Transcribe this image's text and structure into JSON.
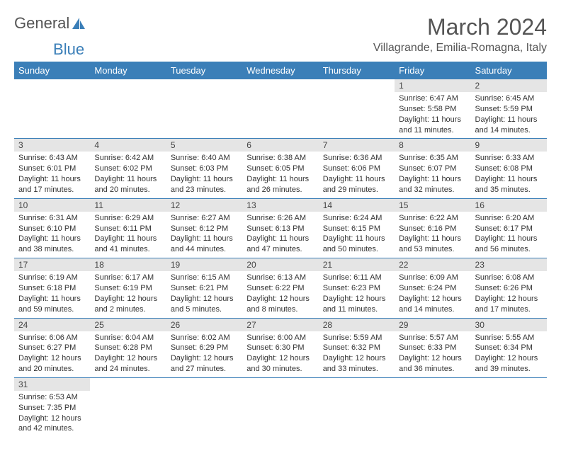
{
  "logo": {
    "text1": "General",
    "text2": "Blue"
  },
  "header": {
    "title": "March 2024",
    "location": "Villagrande, Emilia-Romagna, Italy"
  },
  "dayNames": [
    "Sunday",
    "Monday",
    "Tuesday",
    "Wednesday",
    "Thursday",
    "Friday",
    "Saturday"
  ],
  "colors": {
    "headerBg": "#3b7fb8",
    "headerText": "#ffffff",
    "dayNumBg": "#e5e5e5",
    "border": "#3b7fb8"
  },
  "weeks": [
    [
      {
        "num": "",
        "sunrise": "",
        "sunset": "",
        "daylight": ""
      },
      {
        "num": "",
        "sunrise": "",
        "sunset": "",
        "daylight": ""
      },
      {
        "num": "",
        "sunrise": "",
        "sunset": "",
        "daylight": ""
      },
      {
        "num": "",
        "sunrise": "",
        "sunset": "",
        "daylight": ""
      },
      {
        "num": "",
        "sunrise": "",
        "sunset": "",
        "daylight": ""
      },
      {
        "num": "1",
        "sunrise": "Sunrise: 6:47 AM",
        "sunset": "Sunset: 5:58 PM",
        "daylight": "Daylight: 11 hours and 11 minutes."
      },
      {
        "num": "2",
        "sunrise": "Sunrise: 6:45 AM",
        "sunset": "Sunset: 5:59 PM",
        "daylight": "Daylight: 11 hours and 14 minutes."
      }
    ],
    [
      {
        "num": "3",
        "sunrise": "Sunrise: 6:43 AM",
        "sunset": "Sunset: 6:01 PM",
        "daylight": "Daylight: 11 hours and 17 minutes."
      },
      {
        "num": "4",
        "sunrise": "Sunrise: 6:42 AM",
        "sunset": "Sunset: 6:02 PM",
        "daylight": "Daylight: 11 hours and 20 minutes."
      },
      {
        "num": "5",
        "sunrise": "Sunrise: 6:40 AM",
        "sunset": "Sunset: 6:03 PM",
        "daylight": "Daylight: 11 hours and 23 minutes."
      },
      {
        "num": "6",
        "sunrise": "Sunrise: 6:38 AM",
        "sunset": "Sunset: 6:05 PM",
        "daylight": "Daylight: 11 hours and 26 minutes."
      },
      {
        "num": "7",
        "sunrise": "Sunrise: 6:36 AM",
        "sunset": "Sunset: 6:06 PM",
        "daylight": "Daylight: 11 hours and 29 minutes."
      },
      {
        "num": "8",
        "sunrise": "Sunrise: 6:35 AM",
        "sunset": "Sunset: 6:07 PM",
        "daylight": "Daylight: 11 hours and 32 minutes."
      },
      {
        "num": "9",
        "sunrise": "Sunrise: 6:33 AM",
        "sunset": "Sunset: 6:08 PM",
        "daylight": "Daylight: 11 hours and 35 minutes."
      }
    ],
    [
      {
        "num": "10",
        "sunrise": "Sunrise: 6:31 AM",
        "sunset": "Sunset: 6:10 PM",
        "daylight": "Daylight: 11 hours and 38 minutes."
      },
      {
        "num": "11",
        "sunrise": "Sunrise: 6:29 AM",
        "sunset": "Sunset: 6:11 PM",
        "daylight": "Daylight: 11 hours and 41 minutes."
      },
      {
        "num": "12",
        "sunrise": "Sunrise: 6:27 AM",
        "sunset": "Sunset: 6:12 PM",
        "daylight": "Daylight: 11 hours and 44 minutes."
      },
      {
        "num": "13",
        "sunrise": "Sunrise: 6:26 AM",
        "sunset": "Sunset: 6:13 PM",
        "daylight": "Daylight: 11 hours and 47 minutes."
      },
      {
        "num": "14",
        "sunrise": "Sunrise: 6:24 AM",
        "sunset": "Sunset: 6:15 PM",
        "daylight": "Daylight: 11 hours and 50 minutes."
      },
      {
        "num": "15",
        "sunrise": "Sunrise: 6:22 AM",
        "sunset": "Sunset: 6:16 PM",
        "daylight": "Daylight: 11 hours and 53 minutes."
      },
      {
        "num": "16",
        "sunrise": "Sunrise: 6:20 AM",
        "sunset": "Sunset: 6:17 PM",
        "daylight": "Daylight: 11 hours and 56 minutes."
      }
    ],
    [
      {
        "num": "17",
        "sunrise": "Sunrise: 6:19 AM",
        "sunset": "Sunset: 6:18 PM",
        "daylight": "Daylight: 11 hours and 59 minutes."
      },
      {
        "num": "18",
        "sunrise": "Sunrise: 6:17 AM",
        "sunset": "Sunset: 6:19 PM",
        "daylight": "Daylight: 12 hours and 2 minutes."
      },
      {
        "num": "19",
        "sunrise": "Sunrise: 6:15 AM",
        "sunset": "Sunset: 6:21 PM",
        "daylight": "Daylight: 12 hours and 5 minutes."
      },
      {
        "num": "20",
        "sunrise": "Sunrise: 6:13 AM",
        "sunset": "Sunset: 6:22 PM",
        "daylight": "Daylight: 12 hours and 8 minutes."
      },
      {
        "num": "21",
        "sunrise": "Sunrise: 6:11 AM",
        "sunset": "Sunset: 6:23 PM",
        "daylight": "Daylight: 12 hours and 11 minutes."
      },
      {
        "num": "22",
        "sunrise": "Sunrise: 6:09 AM",
        "sunset": "Sunset: 6:24 PM",
        "daylight": "Daylight: 12 hours and 14 minutes."
      },
      {
        "num": "23",
        "sunrise": "Sunrise: 6:08 AM",
        "sunset": "Sunset: 6:26 PM",
        "daylight": "Daylight: 12 hours and 17 minutes."
      }
    ],
    [
      {
        "num": "24",
        "sunrise": "Sunrise: 6:06 AM",
        "sunset": "Sunset: 6:27 PM",
        "daylight": "Daylight: 12 hours and 20 minutes."
      },
      {
        "num": "25",
        "sunrise": "Sunrise: 6:04 AM",
        "sunset": "Sunset: 6:28 PM",
        "daylight": "Daylight: 12 hours and 24 minutes."
      },
      {
        "num": "26",
        "sunrise": "Sunrise: 6:02 AM",
        "sunset": "Sunset: 6:29 PM",
        "daylight": "Daylight: 12 hours and 27 minutes."
      },
      {
        "num": "27",
        "sunrise": "Sunrise: 6:00 AM",
        "sunset": "Sunset: 6:30 PM",
        "daylight": "Daylight: 12 hours and 30 minutes."
      },
      {
        "num": "28",
        "sunrise": "Sunrise: 5:59 AM",
        "sunset": "Sunset: 6:32 PM",
        "daylight": "Daylight: 12 hours and 33 minutes."
      },
      {
        "num": "29",
        "sunrise": "Sunrise: 5:57 AM",
        "sunset": "Sunset: 6:33 PM",
        "daylight": "Daylight: 12 hours and 36 minutes."
      },
      {
        "num": "30",
        "sunrise": "Sunrise: 5:55 AM",
        "sunset": "Sunset: 6:34 PM",
        "daylight": "Daylight: 12 hours and 39 minutes."
      }
    ],
    [
      {
        "num": "31",
        "sunrise": "Sunrise: 6:53 AM",
        "sunset": "Sunset: 7:35 PM",
        "daylight": "Daylight: 12 hours and 42 minutes."
      },
      {
        "num": "",
        "sunrise": "",
        "sunset": "",
        "daylight": ""
      },
      {
        "num": "",
        "sunrise": "",
        "sunset": "",
        "daylight": ""
      },
      {
        "num": "",
        "sunrise": "",
        "sunset": "",
        "daylight": ""
      },
      {
        "num": "",
        "sunrise": "",
        "sunset": "",
        "daylight": ""
      },
      {
        "num": "",
        "sunrise": "",
        "sunset": "",
        "daylight": ""
      },
      {
        "num": "",
        "sunrise": "",
        "sunset": "",
        "daylight": ""
      }
    ]
  ]
}
